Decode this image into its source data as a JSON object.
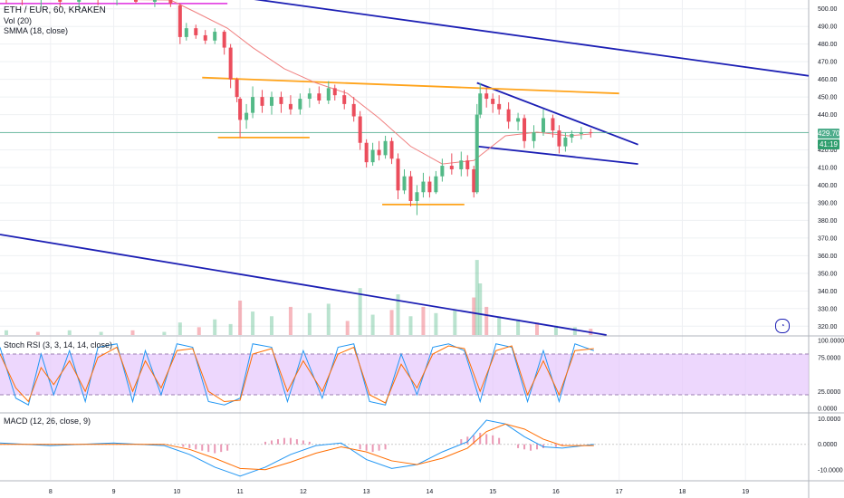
{
  "header": {
    "symbol": "ETH / EUR, 60, KRAKEN",
    "vol_label": "Vol (20)",
    "smma_label": "SMMA (18, close)"
  },
  "price_axis": {
    "ticks": [
      "500.00",
      "490.00",
      "480.00",
      "470.00",
      "460.00",
      "450.00",
      "440.00",
      "430.00",
      "420.00",
      "410.00",
      "400.00",
      "390.00",
      "380.00",
      "370.00",
      "360.00",
      "350.00",
      "340.00",
      "330.00",
      "320.00"
    ],
    "last_price": "429.70",
    "countdown": "41:19"
  },
  "stoch_panel": {
    "label": "Stoch RSI (3, 3, 14, 14, close)",
    "ticks": [
      "100.0000",
      "75.0000",
      "25.0000",
      "0.0000"
    ]
  },
  "macd_panel": {
    "label": "MACD (12, 26, close, 9)",
    "ticks": [
      "10.0000",
      "0.0000",
      "-10.0000"
    ]
  },
  "time_axis": {
    "labels": [
      "8",
      "9",
      "10",
      "11",
      "12",
      "13",
      "14",
      "15",
      "16",
      "17",
      "18",
      "19"
    ]
  },
  "colors": {
    "bull": "#53b987",
    "bear": "#eb4d5c",
    "smma": "#f08080",
    "trend": "#1c1fb4",
    "level": "#ffa31a",
    "magenta": "#e34ae3",
    "stoch_bg": "#e4c2fc",
    "stoch_k": "#2196f3",
    "stoch_d": "#ff6d00",
    "last_price": "#4fad8c"
  },
  "chart_data": [
    {
      "type": "candlestick",
      "title": "ETH / EUR, 60, KRAKEN",
      "x_range": [
        7.2,
        20.0
      ],
      "ylim": [
        315,
        505
      ],
      "overlay": "SMMA (18, close)",
      "candles": [
        {
          "t": 7.3,
          "o": 508,
          "h": 510,
          "l": 503,
          "c": 507
        },
        {
          "t": 7.55,
          "o": 507,
          "h": 509,
          "l": 502,
          "c": 505
        },
        {
          "t": 7.85,
          "o": 505,
          "h": 509,
          "l": 501,
          "c": 507
        },
        {
          "t": 8.15,
          "o": 506,
          "h": 509,
          "l": 501,
          "c": 504
        },
        {
          "t": 8.45,
          "o": 504,
          "h": 508,
          "l": 500,
          "c": 507
        },
        {
          "t": 8.75,
          "o": 507,
          "h": 510,
          "l": 502,
          "c": 505
        },
        {
          "t": 9.05,
          "o": 505,
          "h": 510,
          "l": 502,
          "c": 508
        },
        {
          "t": 9.35,
          "o": 508,
          "h": 510,
          "l": 503,
          "c": 504
        },
        {
          "t": 9.65,
          "o": 504,
          "h": 508,
          "l": 501,
          "c": 506
        },
        {
          "t": 9.9,
          "o": 506,
          "h": 509,
          "l": 501,
          "c": 503
        },
        {
          "t": 10.05,
          "o": 502,
          "h": 503,
          "l": 480,
          "c": 484
        },
        {
          "t": 10.15,
          "o": 484,
          "h": 492,
          "l": 482,
          "c": 489
        },
        {
          "t": 10.3,
          "o": 489,
          "h": 491,
          "l": 483,
          "c": 485
        },
        {
          "t": 10.45,
          "o": 485,
          "h": 488,
          "l": 480,
          "c": 482
        },
        {
          "t": 10.6,
          "o": 482,
          "h": 489,
          "l": 480,
          "c": 487
        },
        {
          "t": 10.75,
          "o": 487,
          "h": 488,
          "l": 474,
          "c": 478
        },
        {
          "t": 10.85,
          "o": 478,
          "h": 480,
          "l": 455,
          "c": 460
        },
        {
          "t": 10.95,
          "o": 460,
          "h": 461,
          "l": 447,
          "c": 450
        },
        {
          "t": 11.0,
          "o": 449,
          "h": 450,
          "l": 427,
          "c": 437
        },
        {
          "t": 11.1,
          "o": 437,
          "h": 446,
          "l": 432,
          "c": 441
        },
        {
          "t": 11.2,
          "o": 441,
          "h": 456,
          "l": 438,
          "c": 450
        },
        {
          "t": 11.35,
          "o": 450,
          "h": 454,
          "l": 441,
          "c": 445
        },
        {
          "t": 11.5,
          "o": 445,
          "h": 453,
          "l": 440,
          "c": 450
        },
        {
          "t": 11.65,
          "o": 450,
          "h": 453,
          "l": 441,
          "c": 446
        },
        {
          "t": 11.8,
          "o": 446,
          "h": 451,
          "l": 440,
          "c": 443
        },
        {
          "t": 11.95,
          "o": 443,
          "h": 452,
          "l": 440,
          "c": 449
        },
        {
          "t": 12.1,
          "o": 449,
          "h": 455,
          "l": 444,
          "c": 452
        },
        {
          "t": 12.25,
          "o": 452,
          "h": 456,
          "l": 446,
          "c": 448
        },
        {
          "t": 12.4,
          "o": 448,
          "h": 459,
          "l": 446,
          "c": 455
        },
        {
          "t": 12.5,
          "o": 455,
          "h": 457,
          "l": 448,
          "c": 451
        },
        {
          "t": 12.65,
          "o": 451,
          "h": 454,
          "l": 443,
          "c": 446
        },
        {
          "t": 12.8,
          "o": 446,
          "h": 450,
          "l": 436,
          "c": 439
        },
        {
          "t": 12.9,
          "o": 439,
          "h": 442,
          "l": 420,
          "c": 424
        },
        {
          "t": 13.0,
          "o": 424,
          "h": 426,
          "l": 410,
          "c": 413
        },
        {
          "t": 13.1,
          "o": 413,
          "h": 424,
          "l": 411,
          "c": 420
        },
        {
          "t": 13.2,
          "o": 420,
          "h": 425,
          "l": 414,
          "c": 417
        },
        {
          "t": 13.3,
          "o": 417,
          "h": 428,
          "l": 415,
          "c": 425
        },
        {
          "t": 13.4,
          "o": 425,
          "h": 427,
          "l": 412,
          "c": 415
        },
        {
          "t": 13.5,
          "o": 415,
          "h": 418,
          "l": 392,
          "c": 397
        },
        {
          "t": 13.6,
          "o": 397,
          "h": 409,
          "l": 395,
          "c": 405
        },
        {
          "t": 13.7,
          "o": 405,
          "h": 408,
          "l": 388,
          "c": 391
        },
        {
          "t": 13.8,
          "o": 391,
          "h": 400,
          "l": 383,
          "c": 396
        },
        {
          "t": 13.9,
          "o": 396,
          "h": 407,
          "l": 393,
          "c": 402
        },
        {
          "t": 14.0,
          "o": 402,
          "h": 405,
          "l": 393,
          "c": 396
        },
        {
          "t": 14.1,
          "o": 396,
          "h": 408,
          "l": 395,
          "c": 405
        },
        {
          "t": 14.2,
          "o": 405,
          "h": 415,
          "l": 402,
          "c": 411
        },
        {
          "t": 14.35,
          "o": 411,
          "h": 418,
          "l": 406,
          "c": 409
        },
        {
          "t": 14.5,
          "o": 409,
          "h": 419,
          "l": 405,
          "c": 414
        },
        {
          "t": 14.6,
          "o": 414,
          "h": 417,
          "l": 405,
          "c": 409
        },
        {
          "t": 14.7,
          "o": 409,
          "h": 411,
          "l": 393,
          "c": 396
        },
        {
          "t": 14.75,
          "o": 396,
          "h": 446,
          "l": 395,
          "c": 440
        },
        {
          "t": 14.8,
          "o": 440,
          "h": 458,
          "l": 438,
          "c": 452
        },
        {
          "t": 14.9,
          "o": 452,
          "h": 455,
          "l": 444,
          "c": 449
        },
        {
          "t": 15.0,
          "o": 449,
          "h": 452,
          "l": 441,
          "c": 446
        },
        {
          "t": 15.1,
          "o": 446,
          "h": 451,
          "l": 440,
          "c": 443
        },
        {
          "t": 15.25,
          "o": 443,
          "h": 447,
          "l": 432,
          "c": 436
        },
        {
          "t": 15.4,
          "o": 436,
          "h": 441,
          "l": 431,
          "c": 438
        },
        {
          "t": 15.5,
          "o": 438,
          "h": 440,
          "l": 421,
          "c": 425
        },
        {
          "t": 15.65,
          "o": 425,
          "h": 434,
          "l": 421,
          "c": 430
        },
        {
          "t": 15.8,
          "o": 430,
          "h": 443,
          "l": 428,
          "c": 438
        },
        {
          "t": 15.95,
          "o": 438,
          "h": 440,
          "l": 427,
          "c": 431
        },
        {
          "t": 16.05,
          "o": 431,
          "h": 434,
          "l": 418,
          "c": 422
        },
        {
          "t": 16.15,
          "o": 422,
          "h": 430,
          "l": 419,
          "c": 427
        },
        {
          "t": 16.25,
          "o": 427,
          "h": 431,
          "l": 424,
          "c": 429
        },
        {
          "t": 16.4,
          "o": 429,
          "h": 433,
          "l": 426,
          "c": 430
        },
        {
          "t": 16.55,
          "o": 430,
          "h": 432,
          "l": 427,
          "c": 429.7
        }
      ],
      "smma": [
        [
          7.3,
          506
        ],
        [
          9.9,
          505
        ],
        [
          10.3,
          498
        ],
        [
          10.8,
          489
        ],
        [
          11.2,
          478
        ],
        [
          11.7,
          466
        ],
        [
          12.2,
          458
        ],
        [
          12.7,
          452
        ],
        [
          13.2,
          438
        ],
        [
          13.7,
          422
        ],
        [
          14.2,
          412
        ],
        [
          14.7,
          414
        ],
        [
          15.2,
          428
        ],
        [
          15.7,
          430
        ],
        [
          16.2,
          428
        ],
        [
          16.55,
          429
        ]
      ],
      "trendlines": [
        {
          "p1": [
            9.9,
            512
          ],
          "p2": [
            20.0,
            462
          ]
        },
        {
          "p1": [
            7.2,
            372
          ],
          "p2": [
            16.8,
            315
          ]
        },
        {
          "p1": [
            14.75,
            458
          ],
          "p2": [
            17.3,
            423
          ]
        },
        {
          "p1": [
            14.75,
            422
          ],
          "p2": [
            17.3,
            412
          ]
        }
      ],
      "levels": [
        {
          "p1": [
            10.4,
            461
          ],
          "p2": [
            17.0,
            452
          ]
        },
        {
          "p1": [
            10.65,
            427
          ],
          "p2": [
            12.1,
            427
          ]
        },
        {
          "p1": [
            13.25,
            389
          ],
          "p2": [
            14.55,
            389
          ]
        },
        {
          "p1": [
            7.2,
            503
          ],
          "p2": [
            10.8,
            503
          ]
        }
      ]
    },
    {
      "type": "bar",
      "title": "Vol (20)",
      "x": [
        7.3,
        7.8,
        8.3,
        8.8,
        9.3,
        9.8,
        10.05,
        10.35,
        10.6,
        10.85,
        11.0,
        11.2,
        11.5,
        11.8,
        12.1,
        12.4,
        12.7,
        12.9,
        13.1,
        13.4,
        13.5,
        13.7,
        13.9,
        14.1,
        14.4,
        14.7,
        14.75,
        14.8,
        14.9,
        15.1,
        15.4,
        15.7,
        16.0,
        16.3,
        16.55
      ],
      "values": [
        3,
        2,
        3,
        2,
        3,
        2,
        8,
        5,
        10,
        7,
        22,
        15,
        12,
        18,
        14,
        20,
        9,
        30,
        13,
        16,
        26,
        12,
        18,
        14,
        16,
        24,
        48,
        33,
        18,
        12,
        10,
        8,
        6,
        5,
        4
      ],
      "ylim": [
        0,
        55
      ]
    },
    {
      "type": "line",
      "title": "Stoch RSI (3, 3, 14, 14, close)",
      "ylim": [
        0,
        100
      ],
      "bands": [
        20,
        80
      ],
      "series": [
        {
          "name": "K",
          "x": [
            7.2,
            7.45,
            7.65,
            7.85,
            8.05,
            8.3,
            8.55,
            8.75,
            9.05,
            9.3,
            9.5,
            9.75,
            10.0,
            10.25,
            10.5,
            10.75,
            11.0,
            11.2,
            11.5,
            11.75,
            12.0,
            12.3,
            12.55,
            12.8,
            13.05,
            13.3,
            13.55,
            13.8,
            14.05,
            14.3,
            14.55,
            14.8,
            15.05,
            15.3,
            15.55,
            15.8,
            16.05,
            16.3,
            16.6
          ],
          "values": [
            90,
            15,
            5,
            80,
            20,
            85,
            10,
            90,
            95,
            10,
            85,
            20,
            95,
            90,
            10,
            5,
            15,
            95,
            90,
            10,
            85,
            15,
            90,
            95,
            10,
            5,
            80,
            20,
            90,
            95,
            85,
            10,
            95,
            90,
            10,
            85,
            10,
            95,
            85
          ]
        },
        {
          "name": "D",
          "x": [
            7.2,
            7.45,
            7.65,
            7.85,
            8.05,
            8.3,
            8.55,
            8.75,
            9.05,
            9.3,
            9.5,
            9.75,
            10.0,
            10.25,
            10.5,
            10.75,
            11.0,
            11.2,
            11.5,
            11.75,
            12.0,
            12.3,
            12.55,
            12.8,
            13.05,
            13.3,
            13.55,
            13.8,
            14.05,
            14.3,
            14.55,
            14.8,
            15.05,
            15.3,
            15.55,
            15.8,
            16.05,
            16.3,
            16.6
          ],
          "values": [
            80,
            30,
            10,
            60,
            35,
            70,
            25,
            75,
            90,
            25,
            70,
            30,
            85,
            88,
            25,
            10,
            12,
            80,
            88,
            25,
            70,
            25,
            80,
            90,
            20,
            8,
            65,
            30,
            80,
            92,
            88,
            25,
            85,
            92,
            20,
            70,
            20,
            85,
            88
          ]
        }
      ]
    },
    {
      "type": "line",
      "title": "MACD (12, 26, close, 9)",
      "ylim": [
        -14,
        12
      ],
      "series": [
        {
          "name": "MACD",
          "x": [
            7.2,
            8.0,
            9.0,
            9.8,
            10.2,
            10.6,
            11.0,
            11.4,
            11.8,
            12.2,
            12.6,
            13.0,
            13.4,
            13.8,
            14.2,
            14.6,
            14.9,
            15.2,
            15.5,
            15.8,
            16.1,
            16.6
          ],
          "values": [
            0.5,
            -0.5,
            0.5,
            -0.5,
            -4,
            -9,
            -12.5,
            -9,
            -4,
            -0.5,
            0.5,
            -6,
            -9.5,
            -8,
            -3,
            1,
            9.5,
            8,
            3,
            -1,
            -1.5,
            0
          ]
        },
        {
          "name": "Signal",
          "x": [
            7.2,
            8.0,
            9.0,
            9.8,
            10.2,
            10.6,
            11.0,
            11.4,
            11.8,
            12.2,
            12.6,
            13.0,
            13.4,
            13.8,
            14.2,
            14.6,
            14.9,
            15.2,
            15.5,
            15.8,
            16.1,
            16.6
          ],
          "values": [
            0,
            0,
            0,
            0,
            -2,
            -5.5,
            -9.5,
            -10,
            -7,
            -3.5,
            -1,
            -3,
            -6.5,
            -8,
            -5.5,
            -1.5,
            5,
            8,
            6,
            2,
            -0.5,
            -0.5
          ]
        }
      ],
      "histogram_x": [
        10.1,
        10.2,
        10.3,
        10.4,
        10.5,
        10.6,
        10.7,
        10.8,
        11.4,
        11.5,
        11.6,
        11.7,
        11.8,
        11.9,
        12.0,
        12.1,
        12.9,
        13.0,
        13.1,
        13.2,
        13.3,
        14.5,
        14.6,
        14.7,
        14.8,
        14.9,
        15.0,
        15.1,
        15.4,
        15.5,
        15.6,
        15.7,
        15.8,
        16.0,
        16.1
      ],
      "histogram": [
        -1,
        -1.5,
        -2,
        -2.5,
        -3,
        -3.5,
        -3,
        -2.5,
        1,
        1.5,
        2,
        2.5,
        2.5,
        2,
        1.5,
        1,
        -2,
        -2.5,
        -3,
        -2.5,
        -2,
        2,
        3,
        3.5,
        4.5,
        4,
        3.5,
        2.5,
        -1.5,
        -2,
        -2.5,
        -2,
        -1.5,
        -1,
        -0.5
      ]
    }
  ]
}
